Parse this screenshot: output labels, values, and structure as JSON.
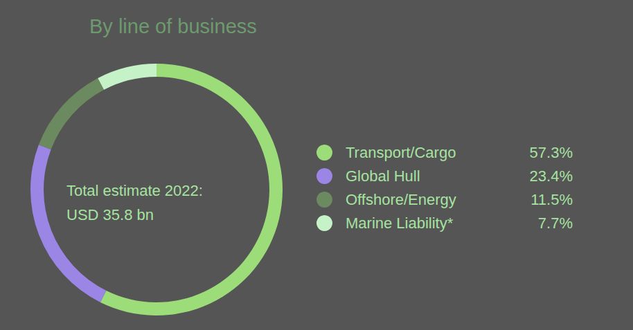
{
  "chart_data": {
    "type": "pie",
    "title": "By line of business",
    "annotations": [
      "Total estimate 2022:",
      "USD 35.8 bn"
    ],
    "categories": [
      "Transport/Cargo",
      "Global Hull",
      "Offshore/Energy",
      "Marine Liability*"
    ],
    "values": [
      57.3,
      23.4,
      11.5,
      7.7
    ],
    "value_labels": [
      "57.3%",
      "23.4%",
      "11.5%",
      "7.7%"
    ],
    "colors": [
      "#9cdd7a",
      "#9b86e6",
      "#6c8a5f",
      "#c6f2c8"
    ],
    "legend": "right"
  }
}
